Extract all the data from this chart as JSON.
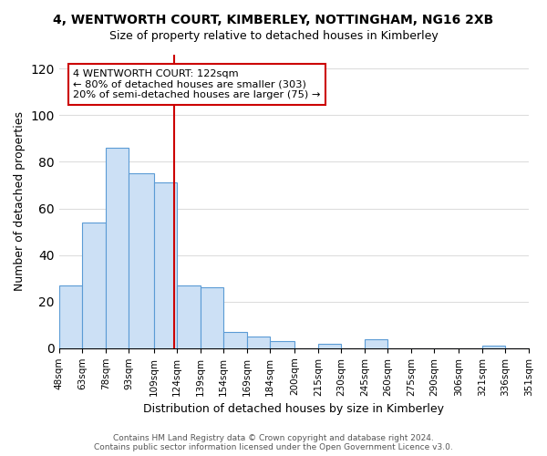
{
  "title": "4, WENTWORTH COURT, KIMBERLEY, NOTTINGHAM, NG16 2XB",
  "subtitle": "Size of property relative to detached houses in Kimberley",
  "xlabel": "Distribution of detached houses by size in Kimberley",
  "ylabel": "Number of detached properties",
  "footer_line1": "Contains HM Land Registry data © Crown copyright and database right 2024.",
  "footer_line2": "Contains public sector information licensed under the Open Government Licence v3.0.",
  "annotation_line1": "4 WENTWORTH COURT: 122sqm",
  "annotation_line2": "← 80% of detached houses are smaller (303)",
  "annotation_line3": "20% of semi-detached houses are larger (75) →",
  "property_line_x": 122,
  "bar_edges": [
    48,
    63,
    78,
    93,
    109,
    124,
    139,
    154,
    169,
    184,
    200,
    215,
    230,
    245,
    260,
    275,
    290,
    306,
    321,
    336,
    351
  ],
  "bar_heights": [
    27,
    54,
    86,
    75,
    71,
    27,
    26,
    7,
    5,
    3,
    0,
    2,
    0,
    4,
    0,
    0,
    0,
    0,
    1,
    0
  ],
  "tick_labels": [
    "48sqm",
    "63sqm",
    "78sqm",
    "93sqm",
    "109sqm",
    "124sqm",
    "139sqm",
    "154sqm",
    "169sqm",
    "184sqm",
    "200sqm",
    "215sqm",
    "230sqm",
    "245sqm",
    "260sqm",
    "275sqm",
    "290sqm",
    "306sqm",
    "321sqm",
    "336sqm",
    "351sqm"
  ],
  "bar_color": "#cce0f5",
  "bar_edge_color": "#5b9bd5",
  "line_color": "#cc0000",
  "box_edge_color": "#cc0000",
  "ylim": [
    0,
    126
  ],
  "yticks": [
    0,
    20,
    40,
    60,
    80,
    100,
    120
  ],
  "background_color": "#ffffff",
  "grid_color": "#dddddd"
}
